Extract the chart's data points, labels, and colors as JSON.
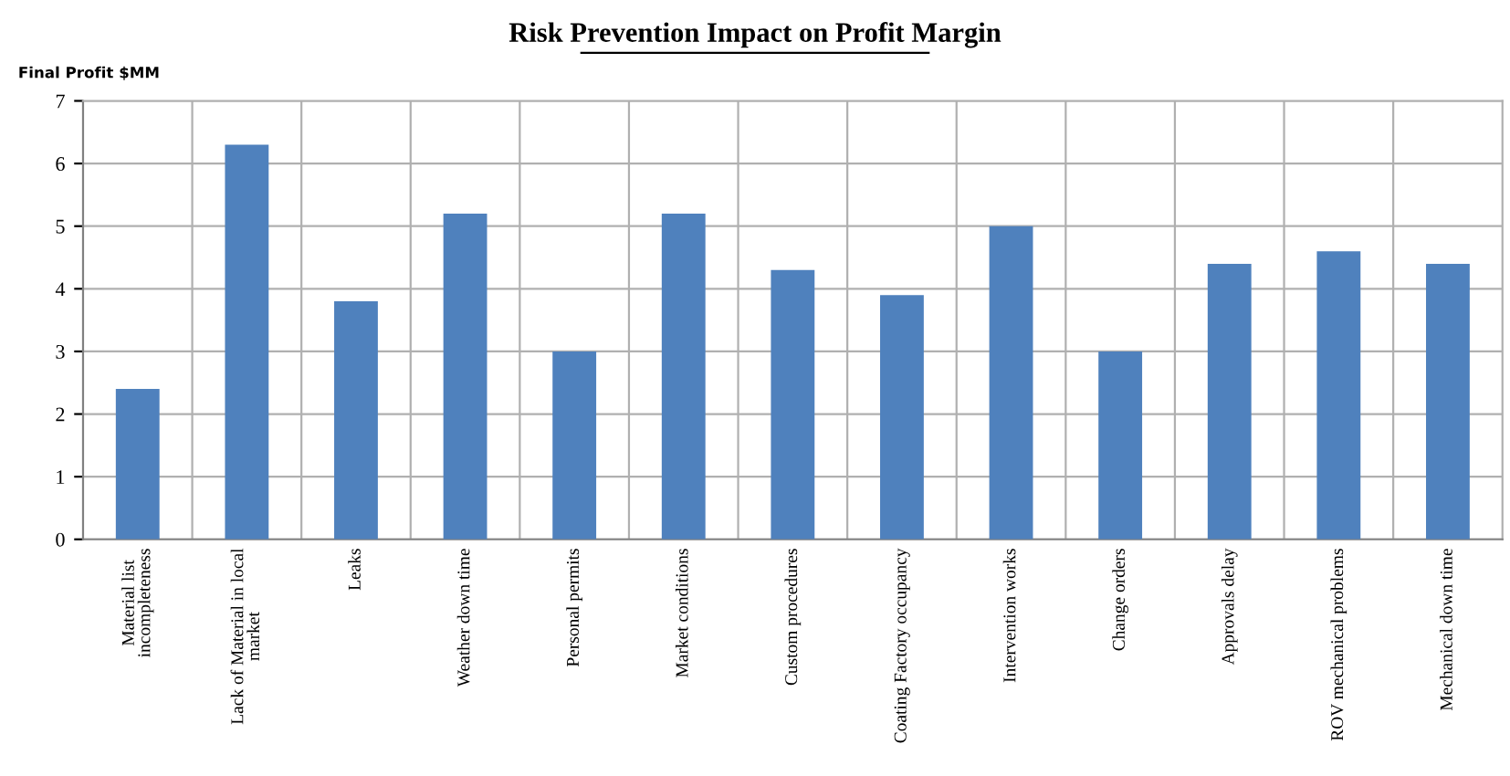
{
  "chart_data": {
    "type": "bar",
    "title": "Risk Prevention Impact on Profit Margin",
    "ylabel": "Final Profit $MM",
    "categories": [
      "Material list\nincompleteness",
      "Lack of Material in local\nmarket",
      "Leaks",
      "Weather down time",
      "Personal permits",
      "Market conditions",
      "Custom procedures",
      "Coating Factory occupancy",
      "Intervention works",
      "Change orders",
      "Approvals delay",
      "ROV mechanical problems",
      "Mechanical down time"
    ],
    "values": [
      2.4,
      6.3,
      3.8,
      5.2,
      3.0,
      5.2,
      4.3,
      3.9,
      5.0,
      3.0,
      4.4,
      4.6,
      4.4
    ],
    "color": "#4f81bd",
    "ylim": [
      0,
      7
    ],
    "yticks": [
      0,
      1,
      2,
      3,
      4,
      5,
      6,
      7
    ],
    "grid": true,
    "legend": false
  }
}
